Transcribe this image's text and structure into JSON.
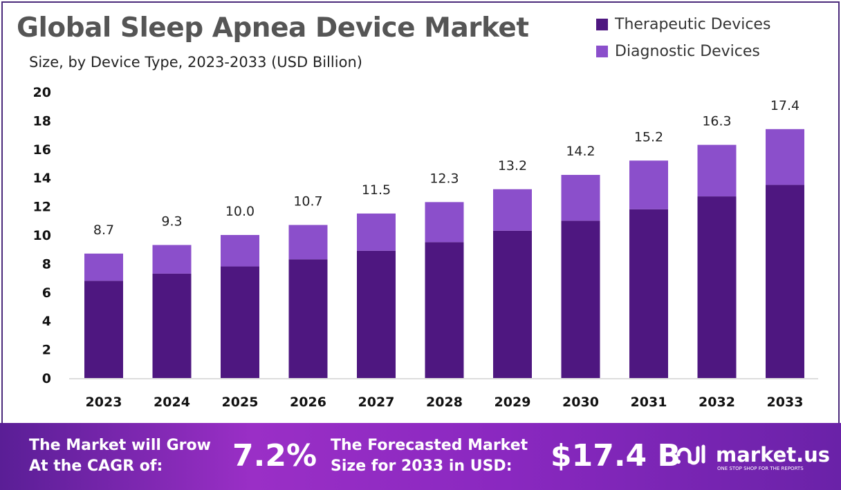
{
  "chart_data": {
    "type": "bar",
    "stacked": true,
    "title": "Global Sleep Apnea Device Market",
    "subtitle": "Size, by Device Type, 2023-2033 (USD Billion)",
    "categories": [
      "2023",
      "2024",
      "2025",
      "2026",
      "2027",
      "2028",
      "2029",
      "2030",
      "2031",
      "2032",
      "2033"
    ],
    "series": [
      {
        "name": "Therapeutic Devices",
        "color": "#4e1780",
        "values": [
          6.8,
          7.3,
          7.8,
          8.3,
          8.9,
          9.5,
          10.3,
          11.0,
          11.8,
          12.7,
          13.5
        ]
      },
      {
        "name": "Diagnostic Devices",
        "color": "#8b4fcb",
        "values": [
          1.9,
          2.0,
          2.2,
          2.4,
          2.6,
          2.8,
          2.9,
          3.2,
          3.4,
          3.6,
          3.9
        ]
      }
    ],
    "totals": [
      "8.7",
      "9.3",
      "10.0",
      "10.7",
      "11.5",
      "12.3",
      "13.2",
      "14.2",
      "15.2",
      "16.3",
      "17.4"
    ],
    "yticks": [
      "0",
      "2",
      "4",
      "6",
      "8",
      "10",
      "12",
      "14",
      "16",
      "18",
      "20"
    ],
    "ylim": [
      0,
      20
    ],
    "grid": false,
    "legend_position": "top-right"
  },
  "banner": {
    "cagr_label_1": "The Market will Grow",
    "cagr_label_2": "At the CAGR of:",
    "cagr_value": "7.2%",
    "forecast_label_1": "The Forecasted Market",
    "forecast_label_2": "Size for 2033 in USD:",
    "forecast_value": "$17.4 B",
    "logo_name": "market.us",
    "logo_tagline": "ONE STOP SHOP FOR THE REPORTS"
  }
}
